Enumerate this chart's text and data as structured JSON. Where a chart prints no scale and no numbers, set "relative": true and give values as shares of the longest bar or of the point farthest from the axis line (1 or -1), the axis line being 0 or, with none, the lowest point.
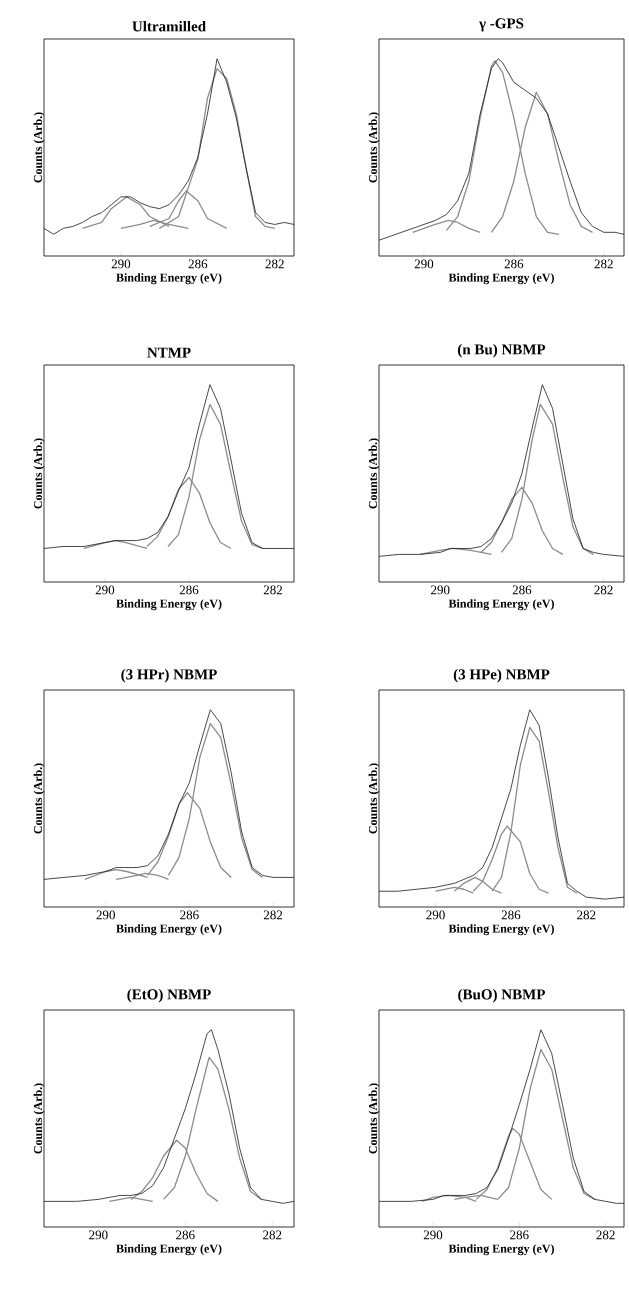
{
  "chart_data": [
    {
      "type": "line",
      "relative": true,
      "title": "Ultramilled",
      "xlabel": "Binding Energy (eV)",
      "ylabel": "Counts  (Arb.)",
      "xlim": [
        294,
        281
      ],
      "xticks": [
        290,
        286,
        282
      ],
      "series": [
        {
          "color": "#1a1a1a",
          "x": [
            294,
            293.5,
            293,
            292.5,
            292,
            291.5,
            291,
            290.5,
            290,
            289.5,
            289,
            288.5,
            288,
            287.5,
            287,
            286.5,
            286,
            285.5,
            285,
            284.5,
            284,
            283.5,
            283,
            282.5,
            282,
            281.5,
            281
          ],
          "values": [
            0.14,
            0.11,
            0.14,
            0.15,
            0.17,
            0.2,
            0.22,
            0.26,
            0.3,
            0.3,
            0.27,
            0.25,
            0.24,
            0.26,
            0.31,
            0.38,
            0.5,
            0.72,
            1.0,
            0.88,
            0.7,
            0.45,
            0.22,
            0.17,
            0.16,
            0.17,
            0.16
          ]
        },
        {
          "color": "#8c8c8c",
          "x": [
            288,
            287,
            286,
            285.5,
            285,
            284.5,
            284,
            283.5,
            283,
            282.5,
            282
          ],
          "values": [
            0.14,
            0.2,
            0.49,
            0.8,
            0.95,
            0.9,
            0.72,
            0.45,
            0.2,
            0.15,
            0.14
          ]
        },
        {
          "color": "#8c8c8c",
          "x": [
            288.5,
            287.5,
            287,
            286.6,
            286,
            285.5,
            284.5
          ],
          "values": [
            0.15,
            0.19,
            0.28,
            0.33,
            0.28,
            0.19,
            0.14
          ]
        },
        {
          "color": "#8c8c8c",
          "x": [
            292,
            291,
            290.5,
            289.7,
            289,
            288.5,
            287.5
          ],
          "values": [
            0.14,
            0.17,
            0.24,
            0.3,
            0.26,
            0.2,
            0.15
          ]
        },
        {
          "color": "#8c8c8c",
          "x": [
            290,
            289,
            288.3,
            287.5,
            286.5
          ],
          "values": [
            0.14,
            0.16,
            0.18,
            0.16,
            0.14
          ]
        }
      ]
    },
    {
      "type": "line",
      "relative": true,
      "title": "γ -GPS",
      "xlabel": "Binding Energy (eV)",
      "ylabel": "Counts  (Arb.)",
      "xlim": [
        292,
        281.1
      ],
      "xticks": [
        290,
        286,
        282
      ],
      "series": [
        {
          "color": "#1a1a1a",
          "x": [
            292,
            291.5,
            291,
            290.5,
            290,
            289.5,
            289,
            288.5,
            288,
            287.5,
            287,
            286.7,
            286.5,
            286,
            285.5,
            285,
            284.5,
            284,
            283.5,
            283,
            282.5,
            282,
            281.5,
            281.1
          ],
          "values": [
            0.08,
            0.1,
            0.12,
            0.14,
            0.16,
            0.18,
            0.21,
            0.28,
            0.42,
            0.72,
            0.95,
            1.0,
            0.98,
            0.88,
            0.84,
            0.8,
            0.72,
            0.55,
            0.38,
            0.22,
            0.15,
            0.12,
            0.12,
            0.11
          ]
        },
        {
          "color": "#8c8c8c",
          "x": [
            289,
            288.5,
            288,
            287.5,
            287,
            286.85,
            286.5,
            286,
            285.5,
            285,
            284.5,
            284
          ],
          "values": [
            0.13,
            0.2,
            0.38,
            0.7,
            0.96,
            0.99,
            0.93,
            0.7,
            0.42,
            0.2,
            0.12,
            0.11
          ]
        },
        {
          "color": "#8c8c8c",
          "x": [
            287,
            286.5,
            286,
            285.5,
            285,
            284.5,
            284,
            283.5,
            283,
            282.5
          ],
          "values": [
            0.12,
            0.2,
            0.38,
            0.65,
            0.83,
            0.72,
            0.48,
            0.26,
            0.15,
            0.12
          ]
        },
        {
          "color": "#8c8c8c",
          "x": [
            290.5,
            290,
            289.5,
            288.9,
            288.5,
            288,
            287.5
          ],
          "values": [
            0.12,
            0.14,
            0.16,
            0.18,
            0.17,
            0.14,
            0.12
          ]
        }
      ]
    },
    {
      "type": "line",
      "relative": true,
      "title": "NTMP",
      "xlabel": "Binding Energy (eV)",
      "ylabel": "Counts  (Arb.)",
      "xlim": [
        292.9,
        281
      ],
      "xticks": [
        290,
        286,
        282
      ],
      "series": [
        {
          "color": "#1a1a1a",
          "x": [
            292.9,
            292,
            291,
            290.5,
            290,
            289.5,
            289,
            288.5,
            288,
            287.5,
            287,
            286.5,
            286,
            285.5,
            285,
            284.5,
            284,
            283.5,
            283,
            282.5,
            282,
            281
          ],
          "values": [
            0.17,
            0.18,
            0.18,
            0.19,
            0.2,
            0.21,
            0.21,
            0.21,
            0.22,
            0.25,
            0.33,
            0.46,
            0.58,
            0.8,
            1.0,
            0.88,
            0.62,
            0.35,
            0.2,
            0.17,
            0.17,
            0.17
          ]
        },
        {
          "color": "#8c8c8c",
          "x": [
            287,
            286.5,
            286,
            285.5,
            285,
            284.5,
            284,
            283.5,
            283,
            282.5
          ],
          "values": [
            0.18,
            0.24,
            0.43,
            0.72,
            0.9,
            0.8,
            0.55,
            0.31,
            0.19,
            0.17
          ]
        },
        {
          "color": "#8c8c8c",
          "x": [
            288,
            287.5,
            287,
            286.5,
            286,
            285.5,
            285,
            284.5,
            284
          ],
          "values": [
            0.18,
            0.23,
            0.33,
            0.47,
            0.53,
            0.45,
            0.3,
            0.2,
            0.17
          ]
        },
        {
          "color": "#8c8c8c",
          "x": [
            291,
            290,
            289.5,
            289,
            288
          ],
          "values": [
            0.17,
            0.2,
            0.21,
            0.2,
            0.17
          ]
        }
      ]
    },
    {
      "type": "line",
      "relative": true,
      "title": "(n Bu) NBMP",
      "xlabel": "Binding Energy (eV)",
      "ylabel": "Counts  (Arb.)",
      "xlim": [
        293,
        281
      ],
      "xticks": [
        290,
        286,
        282
      ],
      "series": [
        {
          "color": "#1a1a1a",
          "x": [
            293,
            292,
            291,
            290,
            289.5,
            289,
            288.5,
            288,
            287.5,
            287,
            286.5,
            286,
            285.5,
            285,
            284.5,
            284,
            283.5,
            283,
            282.5,
            282,
            281
          ],
          "values": [
            0.13,
            0.14,
            0.14,
            0.15,
            0.17,
            0.17,
            0.17,
            0.18,
            0.22,
            0.3,
            0.4,
            0.55,
            0.78,
            1.0,
            0.88,
            0.6,
            0.32,
            0.17,
            0.15,
            0.14,
            0.13
          ]
        },
        {
          "color": "#8c8c8c",
          "x": [
            287,
            286.5,
            286,
            285.5,
            285.1,
            284.5,
            284,
            283.5,
            283,
            282.5
          ],
          "values": [
            0.15,
            0.22,
            0.42,
            0.72,
            0.9,
            0.8,
            0.53,
            0.28,
            0.17,
            0.14
          ]
        },
        {
          "color": "#8c8c8c",
          "x": [
            288,
            287.5,
            287,
            286.5,
            286,
            285.5,
            285,
            284.5,
            284
          ],
          "values": [
            0.15,
            0.2,
            0.3,
            0.42,
            0.48,
            0.4,
            0.26,
            0.17,
            0.14
          ]
        },
        {
          "color": "#8c8c8c",
          "x": [
            291,
            290,
            289.4,
            288.5,
            287.5
          ],
          "values": [
            0.14,
            0.16,
            0.17,
            0.16,
            0.14
          ]
        }
      ]
    },
    {
      "type": "line",
      "relative": true,
      "title": "(3 HPr) NBMP",
      "xlabel": "Binding Energy (eV)",
      "ylabel": "Counts  (Arb.)",
      "xlim": [
        292.95,
        281
      ],
      "xticks": [
        290,
        286,
        282
      ],
      "series": [
        {
          "color": "#1a1a1a",
          "x": [
            292.95,
            292,
            291,
            290,
            289.5,
            289,
            288.5,
            288,
            287.5,
            287,
            286.5,
            286,
            285.5,
            285,
            284.5,
            284,
            283.5,
            283,
            282.5,
            282,
            281
          ],
          "values": [
            0.14,
            0.15,
            0.16,
            0.18,
            0.2,
            0.2,
            0.2,
            0.21,
            0.26,
            0.37,
            0.52,
            0.63,
            0.82,
            1.0,
            0.93,
            0.68,
            0.38,
            0.2,
            0.16,
            0.15,
            0.15
          ]
        },
        {
          "color": "#8c8c8c",
          "x": [
            287,
            286.5,
            286,
            285.5,
            285,
            284.5,
            284,
            283.5,
            283,
            282.5
          ],
          "values": [
            0.16,
            0.25,
            0.45,
            0.76,
            0.93,
            0.86,
            0.62,
            0.35,
            0.19,
            0.15
          ]
        },
        {
          "color": "#8c8c8c",
          "x": [
            288,
            287.5,
            287,
            286.5,
            286.1,
            285.5,
            285,
            284.5,
            284
          ],
          "values": [
            0.16,
            0.23,
            0.36,
            0.52,
            0.58,
            0.5,
            0.33,
            0.2,
            0.15
          ]
        },
        {
          "color": "#8c8c8c",
          "x": [
            291,
            290,
            289.5,
            289,
            288
          ],
          "values": [
            0.14,
            0.18,
            0.19,
            0.18,
            0.15
          ]
        },
        {
          "color": "#8c8c8c",
          "x": [
            289.5,
            288.5,
            288.1,
            287.5,
            287
          ],
          "values": [
            0.14,
            0.16,
            0.17,
            0.16,
            0.14
          ]
        }
      ]
    },
    {
      "type": "line",
      "relative": true,
      "title": "(3 HPe) NBMP",
      "xlabel": "Binding Energy (eV)",
      "ylabel": "Counts  (Arb.)",
      "xlim": [
        293,
        280
      ],
      "xticks": [
        290,
        286,
        282
      ],
      "series": [
        {
          "color": "#1a1a1a",
          "x": [
            293,
            292,
            291,
            290,
            289.5,
            289,
            288.5,
            288,
            287.5,
            287,
            286.5,
            286,
            285.5,
            285,
            284.5,
            284,
            283.5,
            283,
            282.5,
            282,
            281,
            280
          ],
          "values": [
            0.08,
            0.08,
            0.09,
            0.1,
            0.11,
            0.12,
            0.14,
            0.16,
            0.2,
            0.3,
            0.45,
            0.6,
            0.82,
            1.0,
            0.92,
            0.65,
            0.35,
            0.12,
            0.08,
            0.05,
            0.04,
            0.05
          ]
        },
        {
          "color": "#8c8c8c",
          "x": [
            287,
            286.5,
            286,
            285.5,
            285,
            284.5,
            284,
            283.5,
            283,
            282.5
          ],
          "values": [
            0.08,
            0.15,
            0.38,
            0.72,
            0.91,
            0.84,
            0.58,
            0.3,
            0.1,
            0.07
          ]
        },
        {
          "color": "#8c8c8c",
          "x": [
            288,
            287.5,
            287,
            286.5,
            286.2,
            285.5,
            285,
            284.5,
            284
          ],
          "values": [
            0.08,
            0.13,
            0.24,
            0.37,
            0.41,
            0.33,
            0.17,
            0.09,
            0.07
          ]
        },
        {
          "color": "#8c8c8c",
          "x": [
            289,
            288.5,
            287.9,
            287.5,
            287,
            286.5
          ],
          "values": [
            0.08,
            0.12,
            0.15,
            0.13,
            0.09,
            0.07
          ]
        },
        {
          "color": "#8c8c8c",
          "x": [
            290,
            289.5,
            289,
            288.5,
            288
          ],
          "values": [
            0.08,
            0.09,
            0.1,
            0.09,
            0.07
          ]
        }
      ]
    },
    {
      "type": "line",
      "relative": true,
      "title": "(EtO) NBMP",
      "xlabel": "Binding Energy (eV)",
      "ylabel": "Counts  (Arb.)",
      "xlim": [
        292.5,
        281
      ],
      "xticks": [
        290,
        286,
        282
      ],
      "series": [
        {
          "color": "#1a1a1a",
          "x": [
            292.5,
            292,
            291,
            290,
            289.5,
            289,
            288.5,
            288,
            287.5,
            287,
            286.5,
            286,
            285.5,
            285,
            284.8,
            284.5,
            284,
            283.5,
            283,
            282.5,
            282,
            281.5,
            281
          ],
          "values": [
            0.13,
            0.13,
            0.13,
            0.14,
            0.15,
            0.16,
            0.16,
            0.17,
            0.21,
            0.3,
            0.45,
            0.6,
            0.78,
            0.98,
            1.0,
            0.9,
            0.68,
            0.4,
            0.2,
            0.14,
            0.13,
            0.12,
            0.13
          ]
        },
        {
          "color": "#8c8c8c",
          "x": [
            287,
            286.5,
            286,
            285.5,
            285,
            284.9,
            284.5,
            284,
            283.5,
            283,
            282.5
          ],
          "values": [
            0.14,
            0.2,
            0.36,
            0.6,
            0.82,
            0.86,
            0.8,
            0.6,
            0.35,
            0.18,
            0.14
          ]
        },
        {
          "color": "#8c8c8c",
          "x": [
            288.5,
            288,
            287.5,
            287,
            286.4,
            286,
            285.5,
            285,
            284.5
          ],
          "values": [
            0.14,
            0.18,
            0.25,
            0.36,
            0.44,
            0.4,
            0.27,
            0.17,
            0.13
          ]
        },
        {
          "color": "#8c8c8c",
          "x": [
            289.5,
            289,
            288.5,
            288,
            287.5
          ],
          "values": [
            0.13,
            0.14,
            0.15,
            0.14,
            0.13
          ]
        }
      ]
    },
    {
      "type": "line",
      "relative": true,
      "title": "(BuO) NBMP",
      "xlabel": "Binding Energy (eV)",
      "ylabel": "Counts  (Arb.)",
      "xlim": [
        292.5,
        281.15
      ],
      "xticks": [
        290,
        286,
        282
      ],
      "series": [
        {
          "color": "#1a1a1a",
          "x": [
            292.5,
            292,
            291,
            290,
            289.5,
            289,
            288.5,
            288,
            287.5,
            287,
            286.5,
            286,
            285.5,
            285,
            284.5,
            284,
            283.5,
            283,
            282.5,
            282,
            281.5,
            281.15
          ],
          "values": [
            0.13,
            0.13,
            0.13,
            0.14,
            0.16,
            0.16,
            0.16,
            0.17,
            0.2,
            0.29,
            0.45,
            0.62,
            0.8,
            1.0,
            0.88,
            0.62,
            0.35,
            0.18,
            0.14,
            0.13,
            0.12,
            0.12
          ]
        },
        {
          "color": "#8c8c8c",
          "x": [
            287,
            286.5,
            286,
            285.5,
            285,
            284.5,
            284,
            283.5,
            283,
            282.5
          ],
          "values": [
            0.14,
            0.2,
            0.4,
            0.7,
            0.9,
            0.8,
            0.55,
            0.3,
            0.17,
            0.14
          ]
        },
        {
          "color": "#8c8c8c",
          "x": [
            288,
            287.5,
            287,
            286.5,
            286.3,
            286,
            285.5,
            285,
            284.5
          ],
          "values": [
            0.14,
            0.19,
            0.3,
            0.46,
            0.5,
            0.47,
            0.33,
            0.19,
            0.14
          ]
        },
        {
          "color": "#8c8c8c",
          "x": [
            289,
            288.5,
            287.8,
            287
          ],
          "values": [
            0.14,
            0.15,
            0.16,
            0.14
          ]
        },
        {
          "color": "#8c8c8c",
          "x": [
            290.5,
            290,
            289.3,
            288.5,
            288
          ],
          "values": [
            0.13,
            0.15,
            0.16,
            0.15,
            0.13
          ]
        }
      ]
    }
  ]
}
